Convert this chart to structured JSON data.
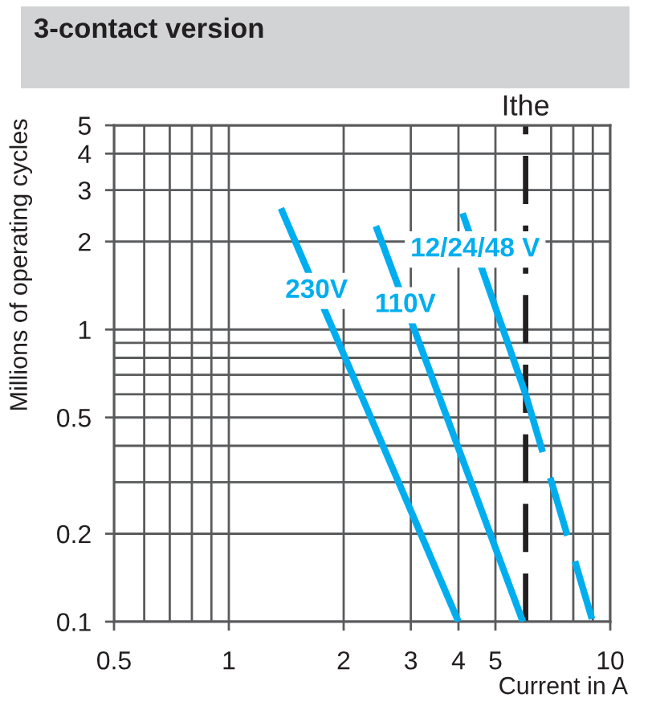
{
  "chart_data": {
    "type": "line",
    "title": "3-contact version",
    "xlabel": "Current in A",
    "ylabel": "Millions of operating cycles",
    "log": "xy",
    "xlim": [
      0.5,
      10
    ],
    "ylim": [
      0.1,
      5
    ],
    "xticks": [
      0.5,
      {
        "value": 0.6,
        "label": null
      },
      {
        "value": 0.7,
        "label": null
      },
      {
        "value": 0.8,
        "label": null
      },
      {
        "value": 0.9,
        "label": null
      },
      1,
      2,
      3,
      4,
      5,
      {
        "value": 7,
        "label": null
      },
      {
        "value": 8,
        "label": null
      },
      {
        "value": 9,
        "label": null
      },
      10
    ],
    "yticks": [
      0.1,
      0.2,
      {
        "value": 0.3,
        "label": null
      },
      {
        "value": 0.4,
        "label": null
      },
      0.5,
      {
        "value": 0.6,
        "label": null
      },
      {
        "value": 0.7,
        "label": null
      },
      {
        "value": 0.8,
        "label": null
      },
      {
        "value": 0.9,
        "label": null
      },
      1,
      2,
      3,
      4,
      5
    ],
    "grid": true,
    "series": [
      {
        "name": "230V",
        "color": "#00aeef",
        "x": [
          1.37,
          4.0
        ],
        "values": [
          2.6,
          0.1
        ]
      },
      {
        "name": "110V",
        "color": "#00aeef",
        "x": [
          2.43,
          5.9
        ],
        "values": [
          2.26,
          0.1
        ]
      },
      {
        "name": "12/24/48 V",
        "color": "#00aeef",
        "x": [
          4.1,
          6
        ],
        "values": [
          2.5,
          0.6
        ]
      },
      {
        "color": "#00aeef",
        "x": [
          6,
          9
        ],
        "values": [
          0.6,
          0.1
        ],
        "line_style": "dashed"
      }
    ],
    "ref_lines": [
      {
        "axis": "x",
        "value": 6,
        "label": "Ithe",
        "color": "#231f20",
        "line_style": "dashed"
      }
    ]
  }
}
